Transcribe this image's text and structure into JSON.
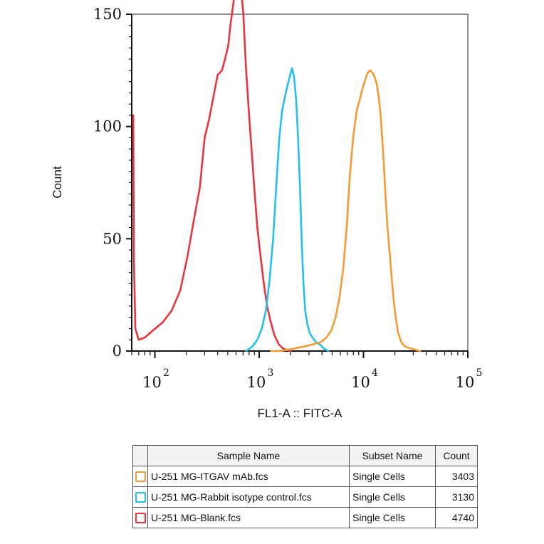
{
  "chart_data": {
    "type": "histogram-overlay",
    "xlabel": "FL1-A :: FITC-A",
    "ylabel": "Count",
    "xscale": "log",
    "xlim": [
      60,
      100000
    ],
    "ylim": [
      0,
      150
    ],
    "yticks": [
      0,
      50,
      100,
      150
    ],
    "xticks": [
      {
        "base": "10",
        "exp": "2",
        "value": 100
      },
      {
        "base": "10",
        "exp": "3",
        "value": 1000
      },
      {
        "base": "10",
        "exp": "4",
        "value": 10000
      },
      {
        "base": "10",
        "exp": "5",
        "value": 100000
      }
    ],
    "series": [
      {
        "name": "U-251 MG-Blank.fcs",
        "color": "#e8353b",
        "points": [
          [
            62,
            105
          ],
          [
            63,
            40
          ],
          [
            65,
            10
          ],
          [
            70,
            5
          ],
          [
            80,
            6
          ],
          [
            95,
            9
          ],
          [
            120,
            13
          ],
          [
            145,
            18
          ],
          [
            175,
            27
          ],
          [
            205,
            42
          ],
          [
            240,
            60
          ],
          [
            270,
            73
          ],
          [
            300,
            95
          ],
          [
            330,
            103
          ],
          [
            360,
            112
          ],
          [
            400,
            123
          ],
          [
            440,
            125
          ],
          [
            470,
            130
          ],
          [
            505,
            136
          ],
          [
            530,
            145
          ],
          [
            555,
            152
          ],
          [
            585,
            160
          ],
          [
            605,
            168
          ],
          [
            640,
            174
          ],
          [
            670,
            162
          ],
          [
            705,
            150
          ],
          [
            745,
            127
          ],
          [
            800,
            105
          ],
          [
            850,
            88
          ],
          [
            900,
            72
          ],
          [
            960,
            55
          ],
          [
            1020,
            44
          ],
          [
            1100,
            31
          ],
          [
            1190,
            20
          ],
          [
            1290,
            13
          ],
          [
            1400,
            7
          ],
          [
            1540,
            3
          ],
          [
            1700,
            1
          ],
          [
            2000,
            0
          ]
        ]
      },
      {
        "name": "U-251 MG-Rabbit isotype control.fcs",
        "color": "#22c0ee",
        "points": [
          [
            750,
            0
          ],
          [
            860,
            2
          ],
          [
            960,
            5
          ],
          [
            1060,
            10
          ],
          [
            1160,
            18
          ],
          [
            1260,
            32
          ],
          [
            1360,
            50
          ],
          [
            1460,
            74
          ],
          [
            1560,
            95
          ],
          [
            1660,
            107
          ],
          [
            1760,
            113
          ],
          [
            1860,
            118
          ],
          [
            1960,
            122
          ],
          [
            2060,
            126
          ],
          [
            2160,
            122
          ],
          [
            2260,
            112
          ],
          [
            2360,
            95
          ],
          [
            2460,
            73
          ],
          [
            2560,
            48
          ],
          [
            2660,
            30
          ],
          [
            2760,
            18
          ],
          [
            2900,
            12
          ],
          [
            3050,
            8
          ],
          [
            3250,
            6
          ],
          [
            3500,
            4
          ],
          [
            3800,
            3
          ],
          [
            4200,
            1
          ],
          [
            4600,
            0
          ]
        ]
      },
      {
        "name": "U-251 MG-ITGAV mAb.fcs",
        "color": "#f29a36",
        "points": [
          [
            1300,
            0
          ],
          [
            1600,
            0
          ],
          [
            2100,
            1
          ],
          [
            2700,
            2
          ],
          [
            3300,
            3
          ],
          [
            3900,
            4
          ],
          [
            4400,
            6
          ],
          [
            4900,
            9
          ],
          [
            5400,
            15
          ],
          [
            5900,
            24
          ],
          [
            6400,
            37
          ],
          [
            6900,
            55
          ],
          [
            7400,
            78
          ],
          [
            8000,
            96
          ],
          [
            8600,
            107
          ],
          [
            9200,
            112
          ],
          [
            9800,
            117
          ],
          [
            10400,
            121
          ],
          [
            11000,
            124
          ],
          [
            11600,
            125
          ],
          [
            12200,
            124
          ],
          [
            12800,
            122
          ],
          [
            13400,
            119
          ],
          [
            14000,
            113
          ],
          [
            14600,
            105
          ],
          [
            15200,
            93
          ],
          [
            15800,
            80
          ],
          [
            16400,
            66
          ],
          [
            17000,
            55
          ],
          [
            17800,
            44
          ],
          [
            18600,
            33
          ],
          [
            19500,
            22
          ],
          [
            20500,
            14
          ],
          [
            21500,
            8
          ],
          [
            23000,
            4
          ],
          [
            25000,
            2
          ],
          [
            29000,
            1
          ],
          [
            35000,
            0
          ]
        ]
      }
    ]
  },
  "legend_table": {
    "headers": {
      "sample": "Sample Name",
      "subset": "Subset Name",
      "count": "Count"
    },
    "rows": [
      {
        "color": "#f29a36",
        "sample": "U-251 MG-ITGAV mAb.fcs",
        "subset": "Single Cells",
        "count": "3403"
      },
      {
        "color": "#22c0ee",
        "sample": "U-251 MG-Rabbit isotype control.fcs",
        "subset": "Single Cells",
        "count": "3130"
      },
      {
        "color": "#e8353b",
        "sample": "U-251 MG-Blank.fcs",
        "subset": "Single Cells",
        "count": "4740"
      }
    ]
  }
}
